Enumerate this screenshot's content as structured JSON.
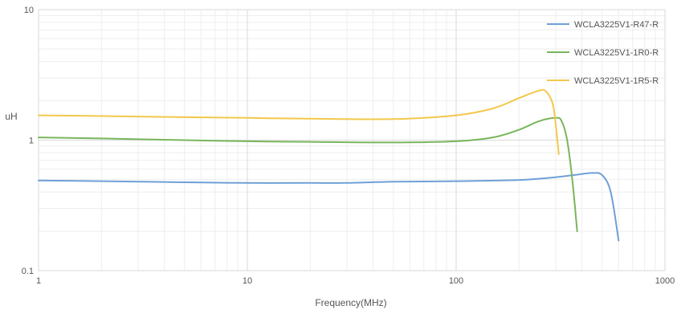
{
  "chart_data": {
    "type": "line",
    "title": "",
    "xlabel": "Frequency(MHz)",
    "ylabel": "uH",
    "x_scale": "log",
    "y_scale": "log",
    "xlim": [
      1,
      1000
    ],
    "ylim": [
      0.1,
      10
    ],
    "x_ticks": [
      "1",
      "10",
      "100",
      "1000"
    ],
    "y_ticks": [
      "0.1",
      "1",
      "10"
    ],
    "grid": true,
    "legend_position": "top-right",
    "series": [
      {
        "name": "WCLA3225V1-R47-R",
        "color": "#6fa0d8",
        "x": [
          1,
          2,
          5,
          10,
          20,
          30,
          50,
          100,
          200,
          300,
          400,
          450,
          500,
          550,
          600
        ],
        "y": [
          0.49,
          0.485,
          0.475,
          0.47,
          0.47,
          0.47,
          0.48,
          0.485,
          0.495,
          0.52,
          0.55,
          0.56,
          0.54,
          0.4,
          0.17
        ]
      },
      {
        "name": "WCLA3225V1-1R0-R",
        "color": "#7ab55c",
        "x": [
          1,
          2,
          5,
          10,
          20,
          50,
          100,
          150,
          200,
          250,
          300,
          320,
          340,
          360,
          380
        ],
        "y": [
          1.05,
          1.03,
          1.0,
          0.98,
          0.97,
          0.96,
          0.98,
          1.05,
          1.2,
          1.4,
          1.48,
          1.4,
          1.0,
          0.5,
          0.2
        ]
      },
      {
        "name": "WCLA3225V1-1R5-R",
        "color": "#f2c84b",
        "x": [
          1,
          2,
          5,
          10,
          20,
          50,
          100,
          150,
          200,
          250,
          270,
          290,
          300,
          310
        ],
        "y": [
          1.55,
          1.53,
          1.5,
          1.48,
          1.46,
          1.45,
          1.55,
          1.75,
          2.1,
          2.4,
          2.35,
          1.9,
          1.3,
          0.78
        ]
      }
    ]
  }
}
